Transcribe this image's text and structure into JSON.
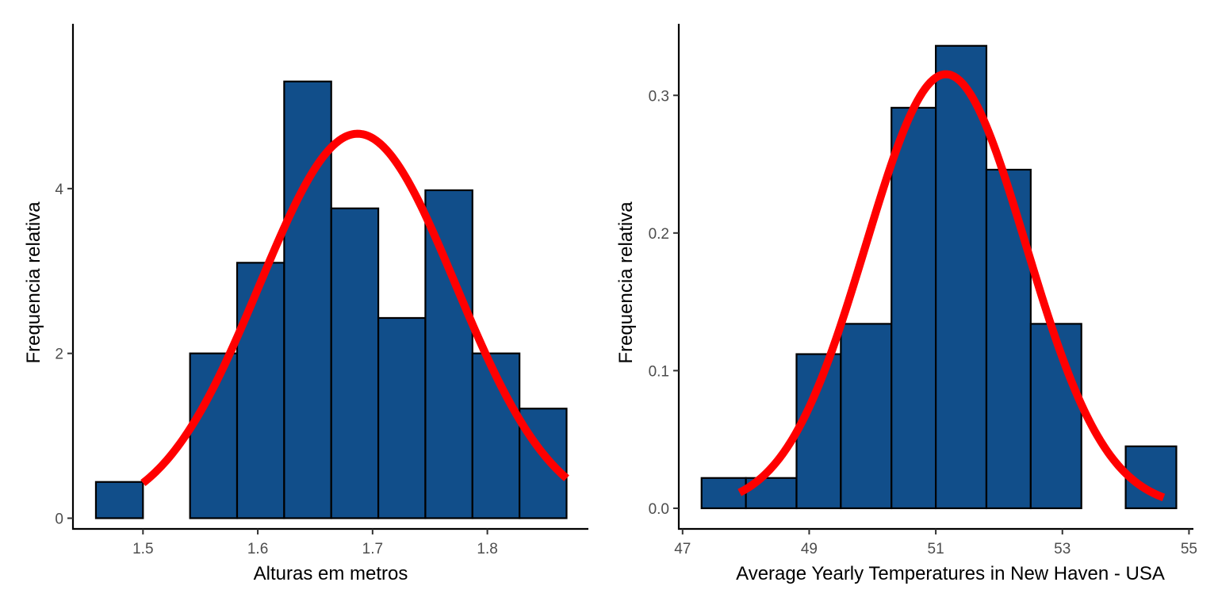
{
  "chart_data": [
    {
      "type": "bar",
      "subtype": "histogram_with_density_curve",
      "xlabel": "Alturas em metros",
      "ylabel": "Frequencia relativa",
      "xlim": [
        1.439,
        1.888
      ],
      "ylim": [
        -0.13,
        6.0
      ],
      "x_ticks": [
        1.5,
        1.6,
        1.7,
        1.8
      ],
      "x_tick_labels": [
        "1.5",
        "1.6",
        "1.7",
        "1.8"
      ],
      "y_ticks": [
        0,
        2,
        4
      ],
      "y_tick_labels": [
        "0",
        "2",
        "4"
      ],
      "bins": [
        {
          "start": 1.459,
          "end": 1.5,
          "value": 0.44
        },
        {
          "start": 1.5,
          "end": 1.541,
          "value": 0.0
        },
        {
          "start": 1.541,
          "end": 1.582,
          "value": 2.0
        },
        {
          "start": 1.582,
          "end": 1.623,
          "value": 3.1
        },
        {
          "start": 1.623,
          "end": 1.664,
          "value": 5.3
        },
        {
          "start": 1.664,
          "end": 1.705,
          "value": 3.76
        },
        {
          "start": 1.705,
          "end": 1.746,
          "value": 2.43
        },
        {
          "start": 1.746,
          "end": 1.787,
          "value": 3.98
        },
        {
          "start": 1.787,
          "end": 1.828,
          "value": 2.0
        },
        {
          "start": 1.828,
          "end": 1.869,
          "value": 1.33
        }
      ],
      "density_curve": {
        "distribution": "normal",
        "mean": 1.687,
        "sd": 0.0855,
        "x_range": [
          1.5,
          1.869
        ]
      },
      "colors": {
        "bar_fill": "#114e8a",
        "bar_stroke": "#000000",
        "curve": "#ff0000"
      },
      "grid": false,
      "legend": "none"
    },
    {
      "type": "bar",
      "subtype": "histogram_with_density_curve",
      "xlabel": "Average Yearly Temperatures in New Haven - USA",
      "ylabel": "Frequencia relativa",
      "xlim": [
        46.94,
        55.07
      ],
      "ylim": [
        -0.015,
        0.352
      ],
      "x_ticks": [
        47,
        49,
        51,
        53,
        55
      ],
      "x_tick_labels": [
        "47",
        "49",
        "51",
        "53",
        "55"
      ],
      "y_ticks": [
        0.0,
        0.1,
        0.2,
        0.3
      ],
      "y_tick_labels": [
        "0.0",
        "0.1",
        "0.2",
        "0.3"
      ],
      "bins": [
        {
          "start": 47.3,
          "end": 48.0,
          "value": 0.022
        },
        {
          "start": 48.0,
          "end": 48.8,
          "value": 0.022
        },
        {
          "start": 48.8,
          "end": 49.5,
          "value": 0.112
        },
        {
          "start": 49.5,
          "end": 50.3,
          "value": 0.134
        },
        {
          "start": 50.3,
          "end": 51.0,
          "value": 0.291
        },
        {
          "start": 51.0,
          "end": 51.8,
          "value": 0.336
        },
        {
          "start": 51.8,
          "end": 52.5,
          "value": 0.246
        },
        {
          "start": 52.5,
          "end": 53.3,
          "value": 0.134
        },
        {
          "start": 53.3,
          "end": 54.0,
          "value": 0.0
        },
        {
          "start": 54.0,
          "end": 54.8,
          "value": 0.045
        }
      ],
      "density_curve": {
        "distribution": "normal",
        "mean": 51.16,
        "sd": 1.265,
        "x_range": [
          47.9,
          54.6
        ]
      },
      "colors": {
        "bar_fill": "#114e8a",
        "bar_stroke": "#000000",
        "curve": "#ff0000"
      },
      "grid": false,
      "legend": "none"
    }
  ]
}
